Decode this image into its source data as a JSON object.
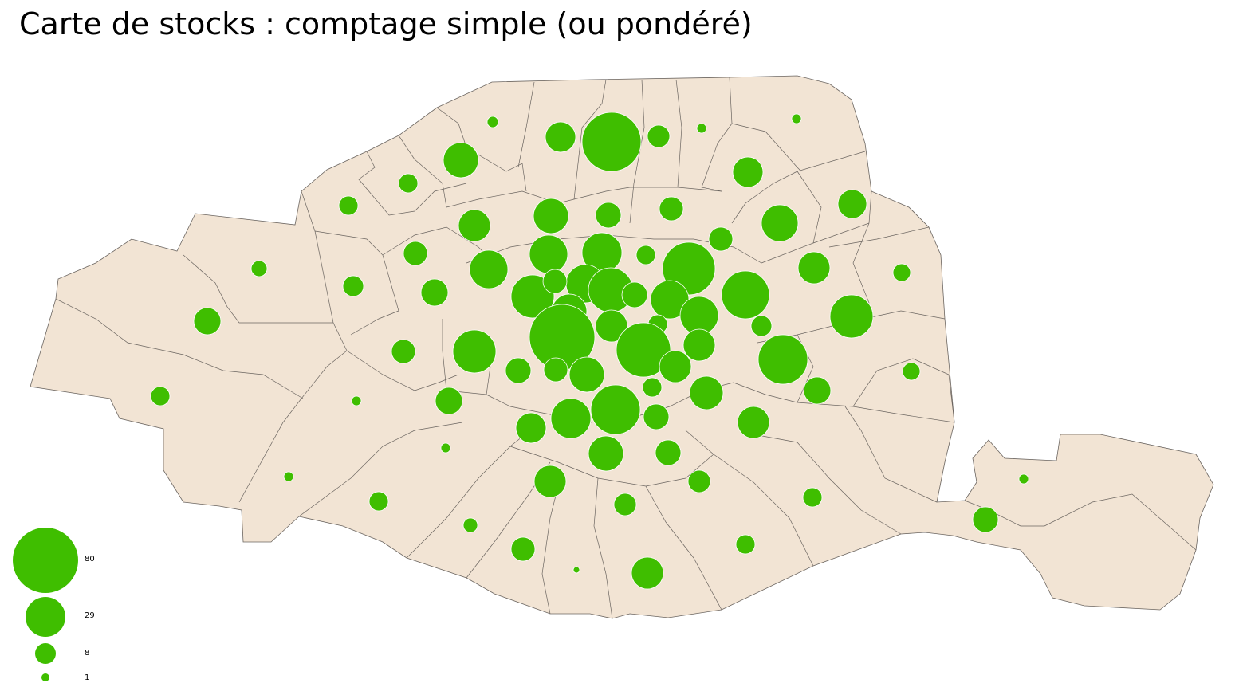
{
  "title": "Carte de stocks : comptage simple (ou pondéré)",
  "colors": {
    "land": "#f2e4d4",
    "boundary": "#6b6560",
    "symbol": "#3fbe00",
    "symbol_outline": "#ffffff"
  },
  "map": {
    "symbol_type": "proportional-circle",
    "legend": {
      "values": [
        "80",
        "29",
        "8",
        "1"
      ]
    }
  }
}
